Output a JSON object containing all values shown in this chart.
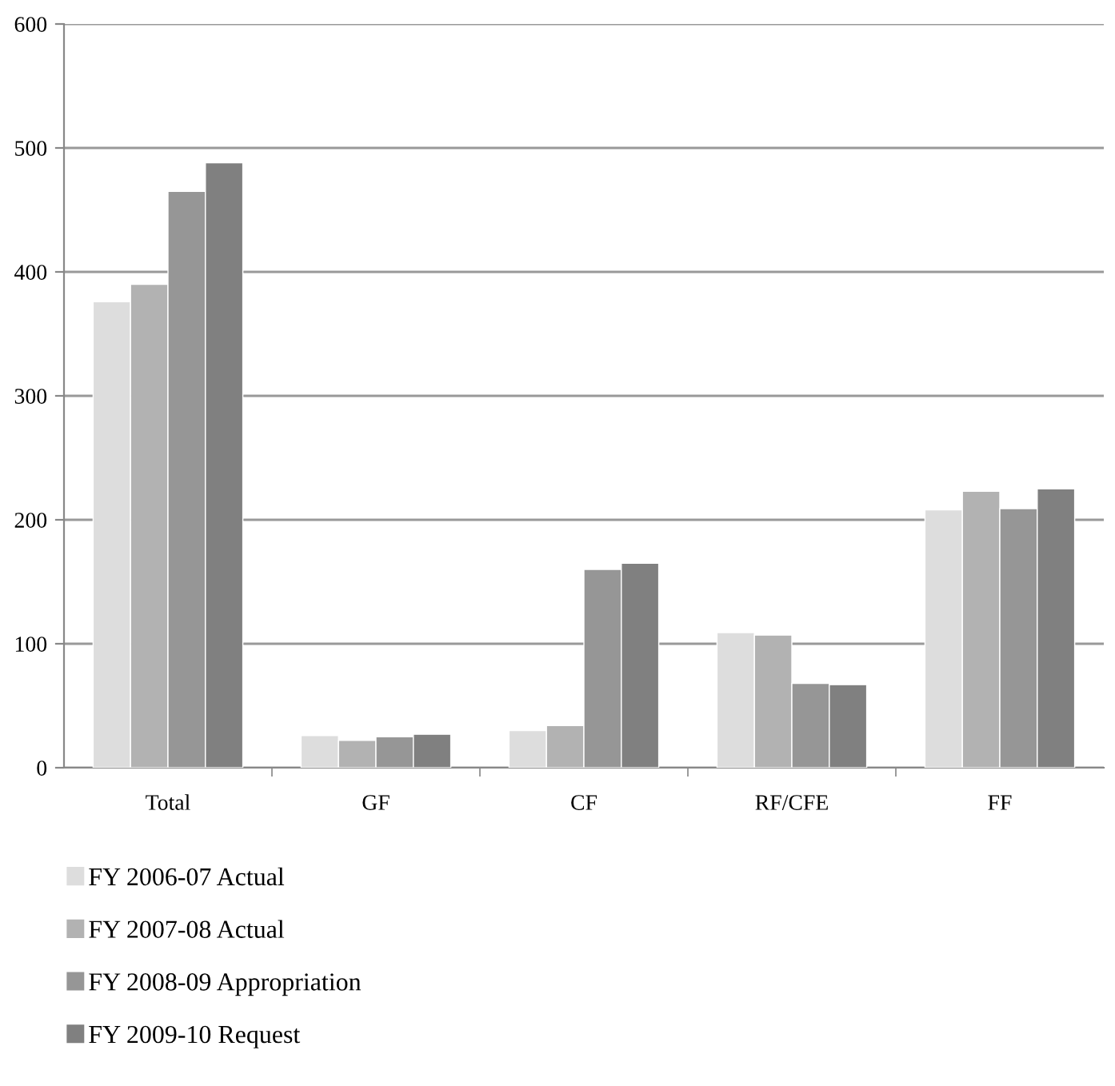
{
  "chart_data": {
    "type": "bar",
    "categories": [
      "Total",
      "GF",
      "CF",
      "RF/CFE",
      "FF"
    ],
    "series": [
      {
        "name": "FY 2006-07 Actual",
        "color": "#dddddd",
        "values": [
          376,
          26,
          30,
          109,
          208
        ]
      },
      {
        "name": "FY 2007-08 Actual",
        "color": "#b2b2b2",
        "values": [
          390,
          22,
          34,
          107,
          223
        ]
      },
      {
        "name": "FY 2008-09 Appropriation",
        "color": "#969696",
        "values": [
          465,
          25,
          160,
          68,
          209
        ]
      },
      {
        "name": "FY 2009-10 Request",
        "color": "#808080",
        "values": [
          488,
          27,
          165,
          67,
          225
        ]
      }
    ],
    "ylim": [
      0,
      600
    ],
    "yticks": [
      0,
      100,
      200,
      300,
      400,
      500,
      600
    ],
    "grid": "y",
    "legend": "bottom"
  }
}
